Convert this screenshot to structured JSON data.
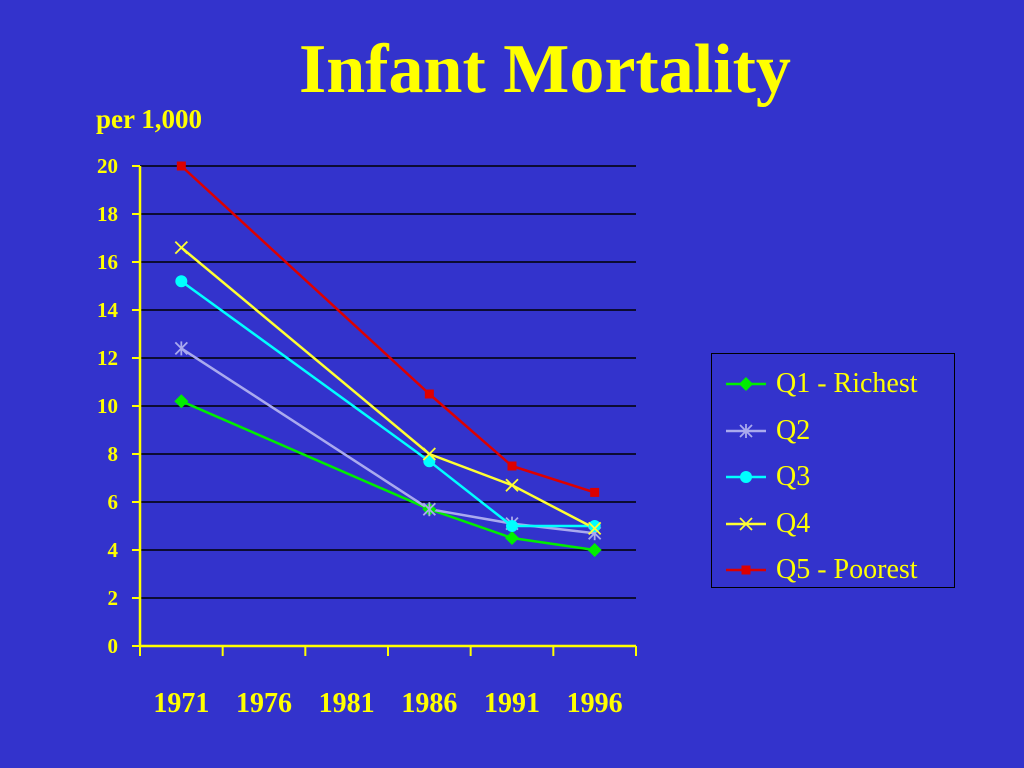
{
  "title": "Infant Mortality",
  "unit_label": "per 1,000",
  "colors": {
    "background": "#3333cc",
    "text": "#ffff00",
    "axis": "#ffff00",
    "gridline": "#000000"
  },
  "chart_data": {
    "type": "line",
    "title": "Infant Mortality",
    "ylabel": "per 1,000",
    "xlabel": "",
    "categories": [
      "1971",
      "1976",
      "1981",
      "1986",
      "1991",
      "1996"
    ],
    "ylim": [
      0,
      20
    ],
    "yticks": [
      0,
      2,
      4,
      6,
      8,
      10,
      12,
      14,
      16,
      18,
      20
    ],
    "grid": true,
    "legend_position": "right",
    "series": [
      {
        "name": "Q1 - Richest",
        "color": "#00ee00",
        "marker": "diamond",
        "points": [
          {
            "x": 1971,
            "y": 10.2
          },
          {
            "x": 1986,
            "y": 5.7
          },
          {
            "x": 1991,
            "y": 4.5
          },
          {
            "x": 1996,
            "y": 4.0
          }
        ]
      },
      {
        "name": "Q2",
        "color": "#aaaaee",
        "marker": "asterisk",
        "points": [
          {
            "x": 1971,
            "y": 12.4
          },
          {
            "x": 1986,
            "y": 5.7
          },
          {
            "x": 1991,
            "y": 5.1
          },
          {
            "x": 1996,
            "y": 4.7
          }
        ]
      },
      {
        "name": "Q3",
        "color": "#00ffff",
        "marker": "circle",
        "points": [
          {
            "x": 1971,
            "y": 15.2
          },
          {
            "x": 1986,
            "y": 7.7
          },
          {
            "x": 1991,
            "y": 5.0
          },
          {
            "x": 1996,
            "y": 5.0
          }
        ]
      },
      {
        "name": "Q4",
        "color": "#ffff33",
        "marker": "x",
        "points": [
          {
            "x": 1971,
            "y": 16.6
          },
          {
            "x": 1986,
            "y": 8.0
          },
          {
            "x": 1991,
            "y": 6.7
          },
          {
            "x": 1996,
            "y": 4.9
          }
        ]
      },
      {
        "name": "Q5 - Poorest",
        "color": "#dd0000",
        "marker": "square",
        "points": [
          {
            "x": 1971,
            "y": 20.0
          },
          {
            "x": 1986,
            "y": 10.5
          },
          {
            "x": 1991,
            "y": 7.5
          },
          {
            "x": 1996,
            "y": 6.4
          }
        ]
      }
    ]
  }
}
